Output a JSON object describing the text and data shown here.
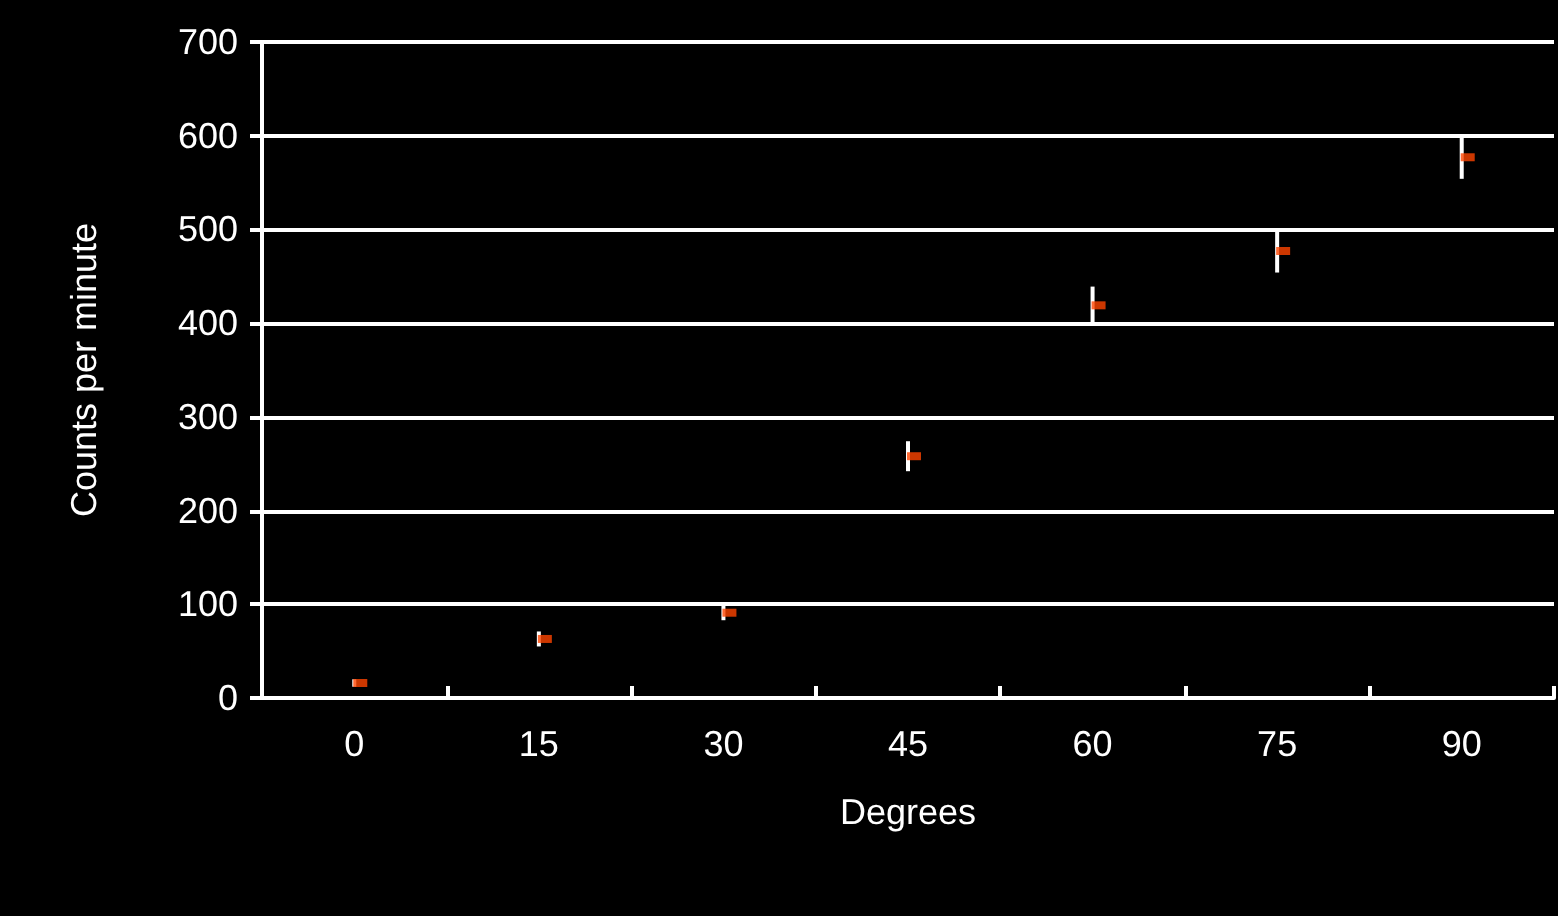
{
  "chart_data": {
    "type": "scatter",
    "xlabel": "Degrees",
    "ylabel": "Counts per minute",
    "categories": [
      "0",
      "15",
      "30",
      "45",
      "60",
      "75",
      "90"
    ],
    "series": [
      {
        "color": "#ff4500",
        "values": [
          16,
          63,
          91,
          258,
          419,
          477,
          577
        ],
        "errors": [
          4,
          8,
          8,
          16,
          20,
          23,
          23
        ]
      }
    ],
    "ylim": [
      0,
      700
    ],
    "yticks": [
      0,
      100,
      200,
      300,
      400,
      500,
      600,
      700
    ],
    "grid": "y",
    "marker": "square"
  }
}
